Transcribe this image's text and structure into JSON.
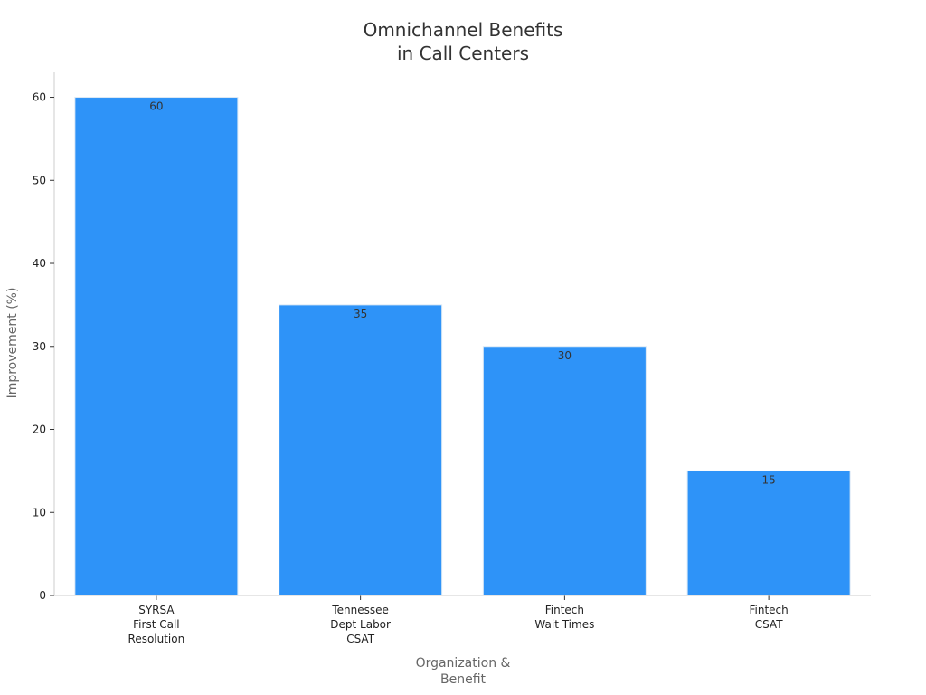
{
  "chart_data": {
    "type": "bar",
    "title_lines": [
      "Omnichannel Benefits",
      "in Call Centers"
    ],
    "xlabel_lines": [
      "Organization &",
      "Benefit"
    ],
    "ylabel": "Improvement (%)",
    "categories": [
      [
        "SYRSA",
        "First Call",
        "Resolution"
      ],
      [
        "Tennessee",
        "Dept Labor",
        "CSAT"
      ],
      [
        "Fintech",
        "Wait Times"
      ],
      [
        "Fintech",
        "CSAT"
      ]
    ],
    "values": [
      60,
      35,
      30,
      15
    ],
    "yticks": [
      0,
      10,
      20,
      30,
      40,
      50,
      60
    ],
    "ylim": [
      0,
      63
    ],
    "grid": false,
    "colors": {
      "bar": "#2e93f8",
      "bar_edge": "#d9e8f5"
    }
  }
}
